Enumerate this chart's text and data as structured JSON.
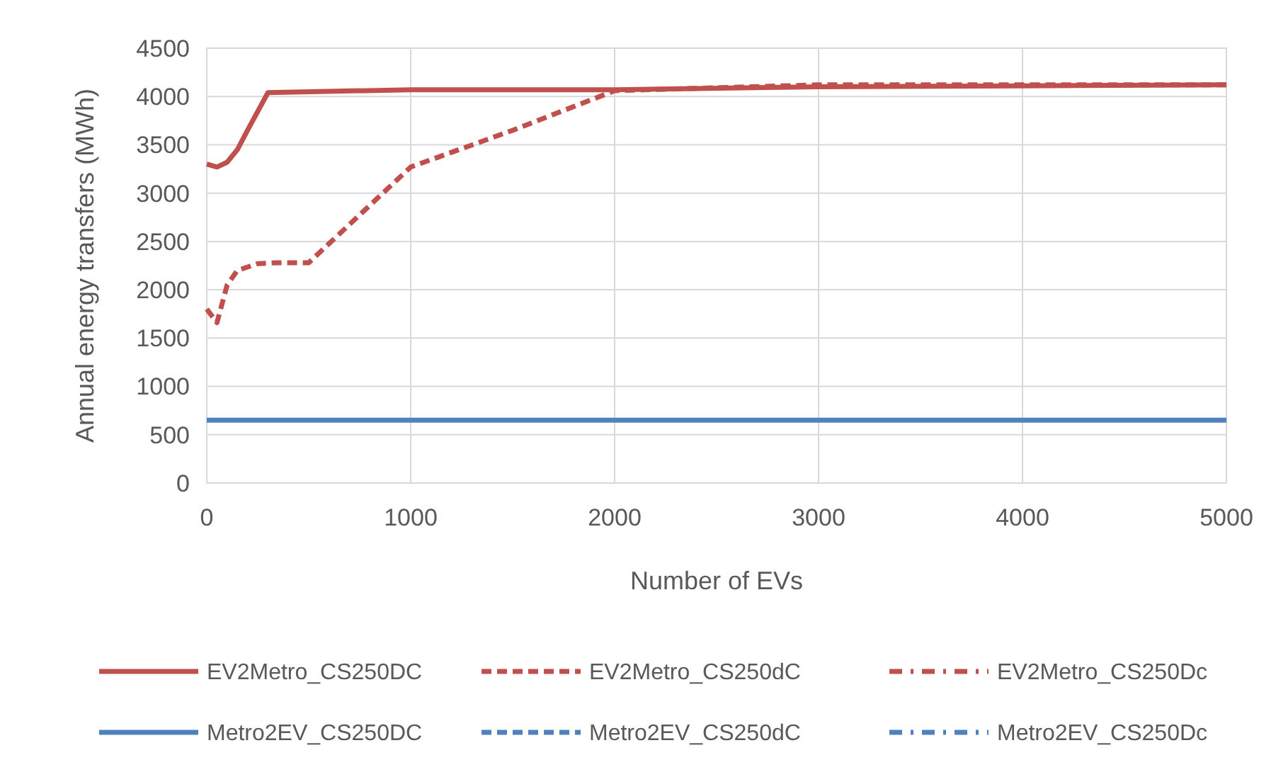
{
  "chart_data": {
    "type": "line",
    "xlabel": "Number  of EVs",
    "ylabel": "Annual energy transfers (MWh)",
    "xlim": [
      0,
      5000
    ],
    "xticks": [
      0,
      1000,
      2000,
      3000,
      4000,
      5000
    ],
    "ylim": [
      0,
      4500
    ],
    "yticks": [
      0,
      500,
      1000,
      1500,
      2000,
      2500,
      3000,
      3500,
      4000,
      4500
    ],
    "grid": true,
    "legend": "bottom",
    "marker": "none",
    "series": [
      {
        "name": "EV2Metro_CS250DC",
        "color": "#c0504d",
        "line_style": "solid",
        "x": [
          0,
          50,
          100,
          150,
          200,
          300,
          1000,
          2000,
          3000,
          4000,
          5000
        ],
        "values": [
          3300,
          3270,
          3320,
          3450,
          3650,
          4040,
          4070,
          4070,
          4100,
          4110,
          4120
        ]
      },
      {
        "name": "EV2Metro_CS250dC",
        "color": "#c0504d",
        "line_style": "dashed",
        "x": [
          0,
          50,
          100,
          150,
          250,
          350,
          500,
          1000,
          1500,
          2000,
          3000,
          4000,
          5000
        ],
        "values": [
          1800,
          1660,
          2050,
          2200,
          2270,
          2280,
          2280,
          3270,
          3650,
          4060,
          4120,
          4120,
          4120
        ]
      },
      {
        "name": "EV2Metro_CS250Dc",
        "color": "#c0504d",
        "line_style": "dashdot"
      },
      {
        "name": "Metro2EV_CS250DC",
        "color": "#4f81bd",
        "line_style": "solid",
        "x": [
          0,
          5000
        ],
        "values": [
          650,
          650
        ]
      },
      {
        "name": "Metro2EV_CS250dC",
        "color": "#4f81bd",
        "line_style": "dashed"
      },
      {
        "name": "Metro2EV_CS250Dc",
        "color": "#4f81bd",
        "line_style": "dashdot"
      }
    ]
  }
}
